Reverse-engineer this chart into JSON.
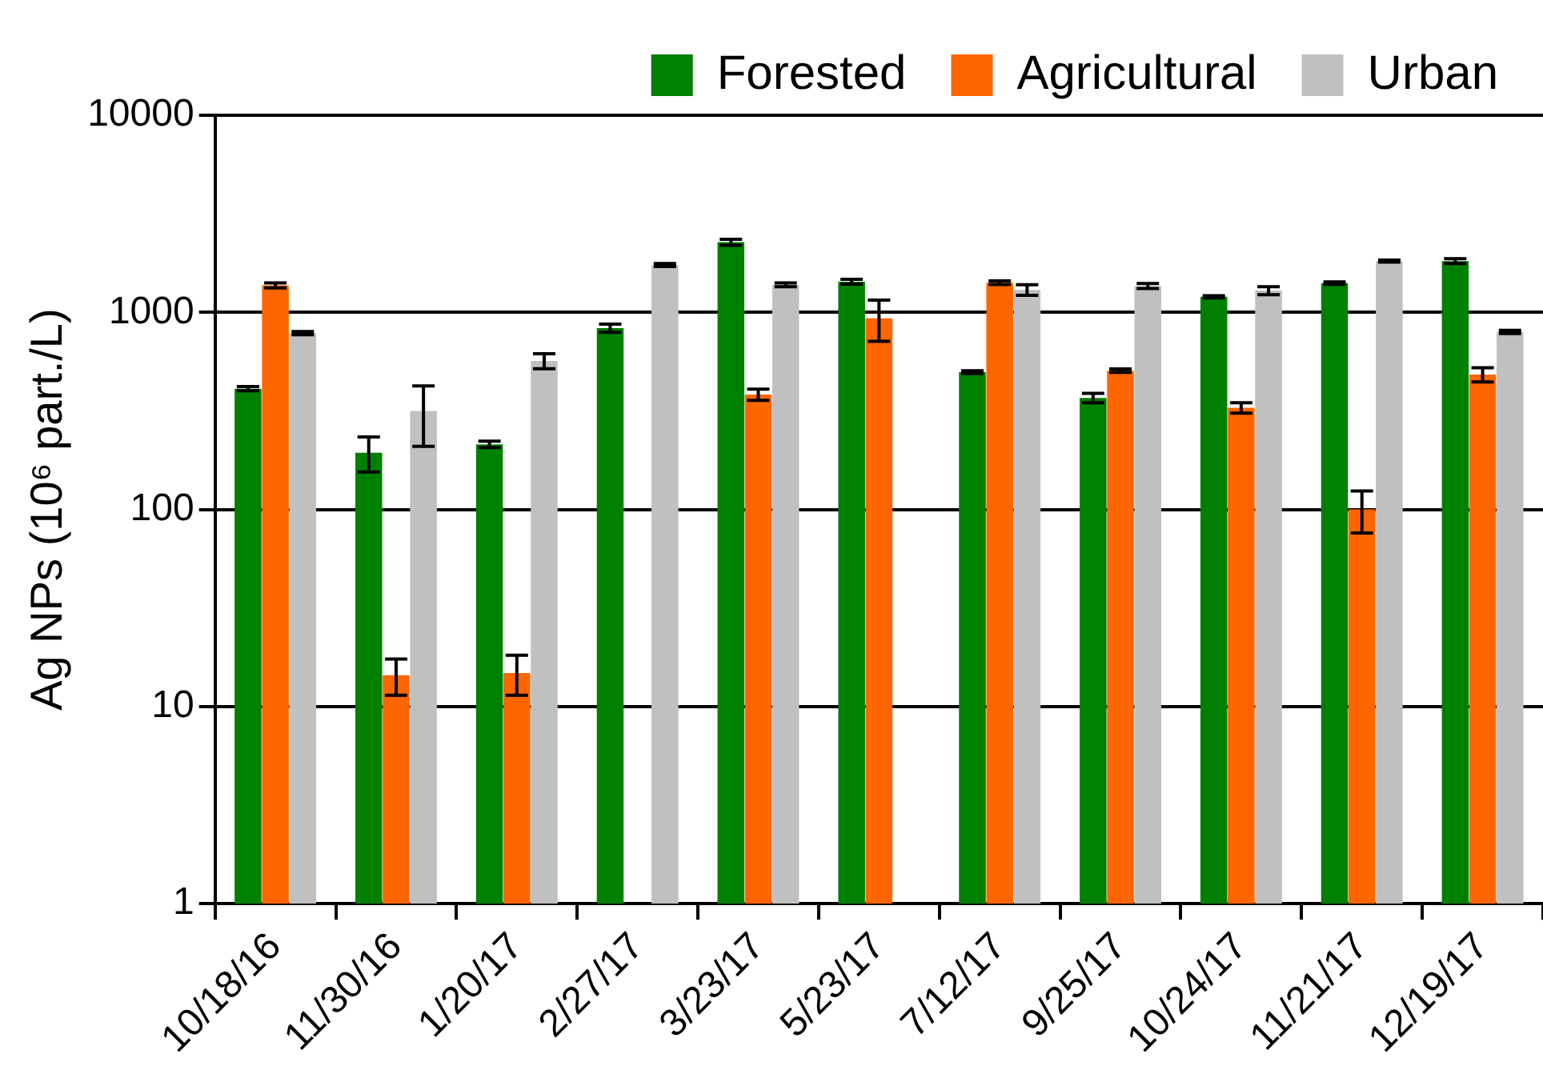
{
  "chart_data": {
    "type": "bar",
    "ylabel": "Ag NPs (10⁶ part./L)",
    "categories": [
      "10/18/16",
      "11/30/16",
      "1/20/17",
      "2/27/17",
      "3/23/17",
      "5/23/17",
      "7/12/17",
      "9/25/17",
      "10/24/17",
      "11/21/17",
      "12/19/17"
    ],
    "series": [
      {
        "name": "Forested",
        "color": "#008000",
        "values": [
          410,
          194,
          214,
          832,
          2270,
          1430,
          497,
          368,
          1200,
          1406,
          1820
        ],
        "errors": [
          10,
          39,
          8,
          40,
          80,
          40,
          8,
          20,
          15,
          20,
          50
        ]
      },
      {
        "name": "Agricultural",
        "color": "#ff6600",
        "values": [
          1370,
          14.4,
          14.8,
          null,
          383,
          933,
          1415,
          506,
          328,
          100,
          484
        ],
        "errors": [
          40,
          3,
          3.4,
          null,
          25,
          220,
          30,
          10,
          20,
          24,
          40
        ]
      },
      {
        "name": "Urban",
        "color": "#c0c0c0",
        "values": [
          785,
          316,
          567,
          1740,
          1380,
          null,
          1300,
          1360,
          1290,
          1820,
          795
        ],
        "errors": [
          15,
          107,
          50,
          30,
          30,
          null,
          80,
          40,
          60,
          20,
          15
        ]
      }
    ],
    "log": "y",
    "ylim": [
      1,
      10000
    ],
    "yticks": [
      1,
      10,
      100,
      1000,
      10000
    ],
    "grid": "y",
    "legend": "top right"
  }
}
